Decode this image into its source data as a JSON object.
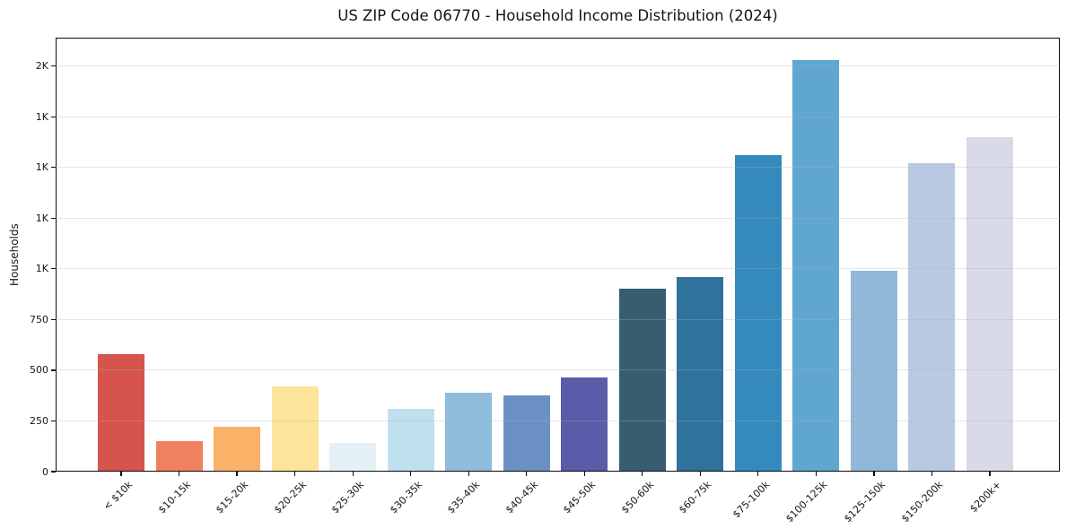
{
  "chart_data": {
    "type": "bar",
    "title": "US ZIP Code 06770 - Household Income Distribution (2024)",
    "xlabel": "",
    "ylabel": "Households",
    "categories": [
      "< $10k",
      "$10-15k",
      "$15-20k",
      "$20-25k",
      "$25-30k",
      "$30-35k",
      "$35-40k",
      "$40-45k",
      "$45-50k",
      "$50-60k",
      "$60-75k",
      "$75-100k",
      "$100-125k",
      "$125-150k",
      "$150-200k",
      "$200k+"
    ],
    "values": [
      580,
      150,
      220,
      420,
      140,
      310,
      390,
      375,
      465,
      900,
      960,
      1560,
      2030,
      990,
      1520,
      1650
    ],
    "bar_colors": [
      "#d5544e",
      "#f0815f",
      "#f9b268",
      "#fce49b",
      "#e4f1f4",
      "#bfe0ed",
      "#8ebcdb",
      "#6b91c4",
      "#5a5ca9",
      "#365d70",
      "#2f729b",
      "#348abd",
      "#5fa7d0",
      "#92b8d9",
      "#b8c9e1",
      "#d8dae8"
    ],
    "ylim": [
      0,
      2140
    ],
    "yticks": [
      {
        "value": 0,
        "label": "0"
      },
      {
        "value": 250,
        "label": "250"
      },
      {
        "value": 500,
        "label": "500"
      },
      {
        "value": 750,
        "label": "750"
      },
      {
        "value": 1000,
        "label": "1K"
      },
      {
        "value": 1250,
        "label": "1K"
      },
      {
        "value": 1500,
        "label": "1K"
      },
      {
        "value": 1750,
        "label": "1K"
      },
      {
        "value": 2000,
        "label": "2K"
      }
    ],
    "grid": "horizontal gridlines, light gray, drawn above bars",
    "legend": "none",
    "x_tick_rotation_deg": 45
  }
}
